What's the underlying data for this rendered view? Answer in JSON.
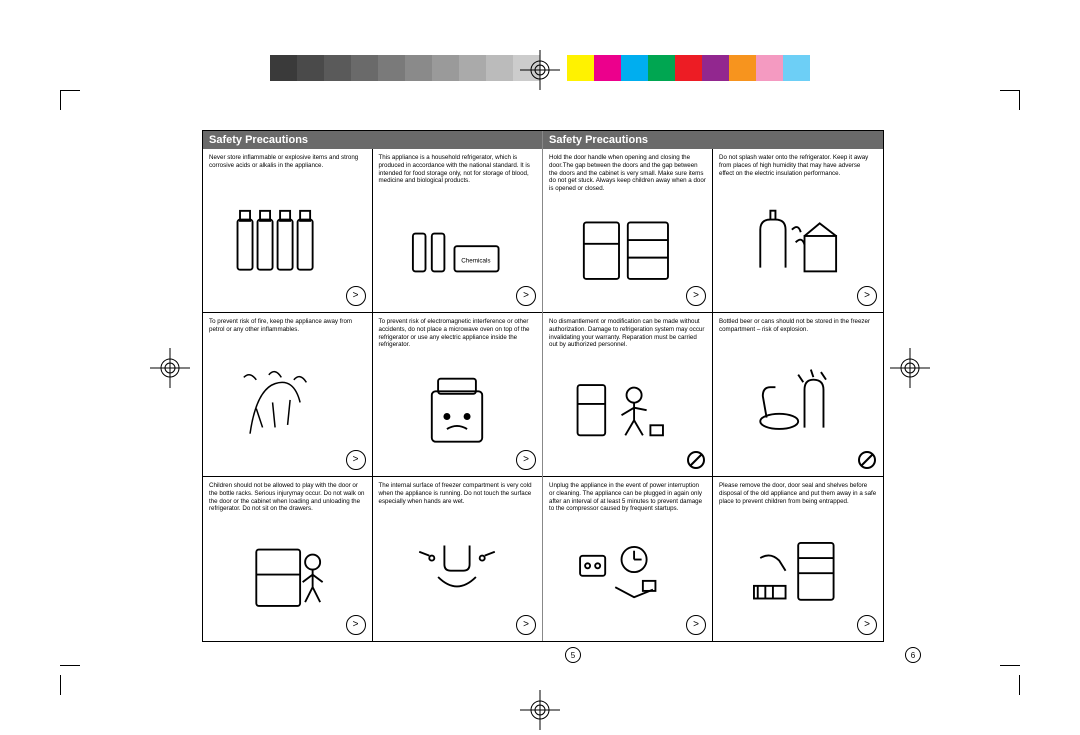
{
  "colorbar": [
    "#3a3a3a",
    "#4a4a4a",
    "#5a5a5a",
    "#6a6a6a",
    "#7a7a7a",
    "#8a8a8a",
    "#9a9a9a",
    "#aaaaaa",
    "#bbbbbb",
    "#cccccc",
    "#ffffff",
    "#fff200",
    "#ec008c",
    "#00aeef",
    "#00a651",
    "#ed1c24",
    "#92278f",
    "#f7941e",
    "#f49ac1",
    "#6dcff6"
  ],
  "title_left": "Safety Precautions",
  "title_right": "Safety Precautions",
  "page_num_left": "5",
  "page_num_right": "6",
  "left_cells": [
    {
      "text": "Never store inflammable or explosive items and strong corrosive acids or alkalis in the appliance.",
      "marker": ">"
    },
    {
      "text": "This appliance is a household refrigerator, which is produced in accordance with the  national standard. It is intended for food storage only, not for storage of blood, medicine and biological products.",
      "marker": ">"
    },
    {
      "text": "To prevent risk of fire, keep the appliance away from petrol or any other inflammables.",
      "marker": ">"
    },
    {
      "text": "To prevent risk of electromagnetic interference or other accidents, do not place a microwave oven on top of the refrigerator or use any electric appliance inside the refrigerator.",
      "marker": ">"
    },
    {
      "text": "Children should not be allowed to play with the door or the bottle racks. Serious injurymay occur. Do not walk on the door or the cabinet when loading and unloading the refrigerator. Do not sit on the drawers.",
      "marker": ">"
    },
    {
      "text": "The internal surface of freezer compartment is very cold when the appliance is running. Do not touch the surface especially when hands are wet.",
      "marker": ">"
    }
  ],
  "right_cells": [
    {
      "text": "Hold the door handle when opening and closing the door.The gap between the doors and the gap between the doors and the cabinet is very small. Make sure items  do not get stuck. Always keep children away when a door is opened or closed.",
      "marker": ">"
    },
    {
      "text": "Do not splash water onto the refrigerator. Keep it away from places of high humidity that may have adverse effect on the electric insulation performance.",
      "marker": ">"
    },
    {
      "text": "No dismantlement or modification can be made without authorization. Damage to refrigeration system may occur invalidating your warranty. Reparation must be carried out by authorized personnel.",
      "prohibit": true
    },
    {
      "text": "Bottled beer or cans should not be stored in the freezer compartment – risk of explosion.",
      "prohibit": true
    },
    {
      "text": "Unplug the appliance in the event of power interruption or cleaning. The appliance can be plugged in again only after an interval of at least 5 minutes to prevent damage to the compressor caused by frequent startups.",
      "marker": ">"
    },
    {
      "text": "Please remove the door, door seal and shelves before disposal of the old appliance and put them away in a safe place to prevent children from being entrapped.",
      "marker": ">"
    }
  ]
}
